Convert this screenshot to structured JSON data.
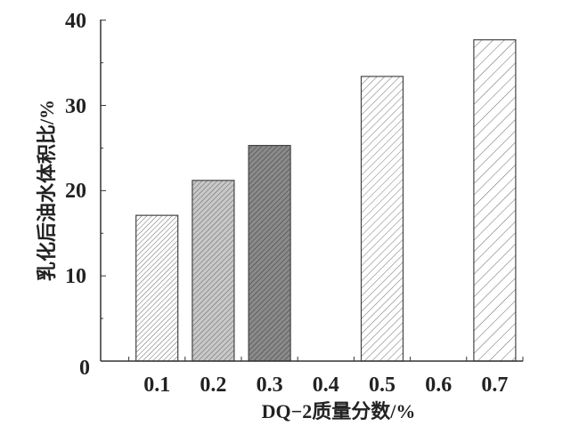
{
  "chart_data": {
    "type": "bar",
    "categories": [
      "0.1",
      "0.2",
      "0.3",
      "0.4",
      "0.5",
      "0.6",
      "0.7"
    ],
    "values": [
      17.1,
      21.2,
      25.3,
      null,
      33.4,
      null,
      37.7
    ],
    "xlabel": "DQ−2质量分数/%",
    "ylabel": "乳化后油水体积比/%",
    "ylim": [
      0,
      40
    ],
    "yticks": [
      "0",
      "10",
      "20",
      "30",
      "40"
    ],
    "grid": false,
    "bar_styles": [
      {
        "fill": "#ffffff",
        "hatch": "#555555",
        "hatch_spacing": "fine"
      },
      {
        "fill": "#c8c8c8",
        "hatch": "#555555",
        "hatch_spacing": "fine"
      },
      {
        "fill": "#8a8a8a",
        "hatch": "#333333",
        "hatch_spacing": "fine"
      },
      null,
      {
        "fill": "#ffffff",
        "hatch": "#666666",
        "hatch_spacing": "medium"
      },
      null,
      {
        "fill": "#ffffff",
        "hatch": "#555555",
        "hatch_spacing": "wide"
      }
    ]
  }
}
